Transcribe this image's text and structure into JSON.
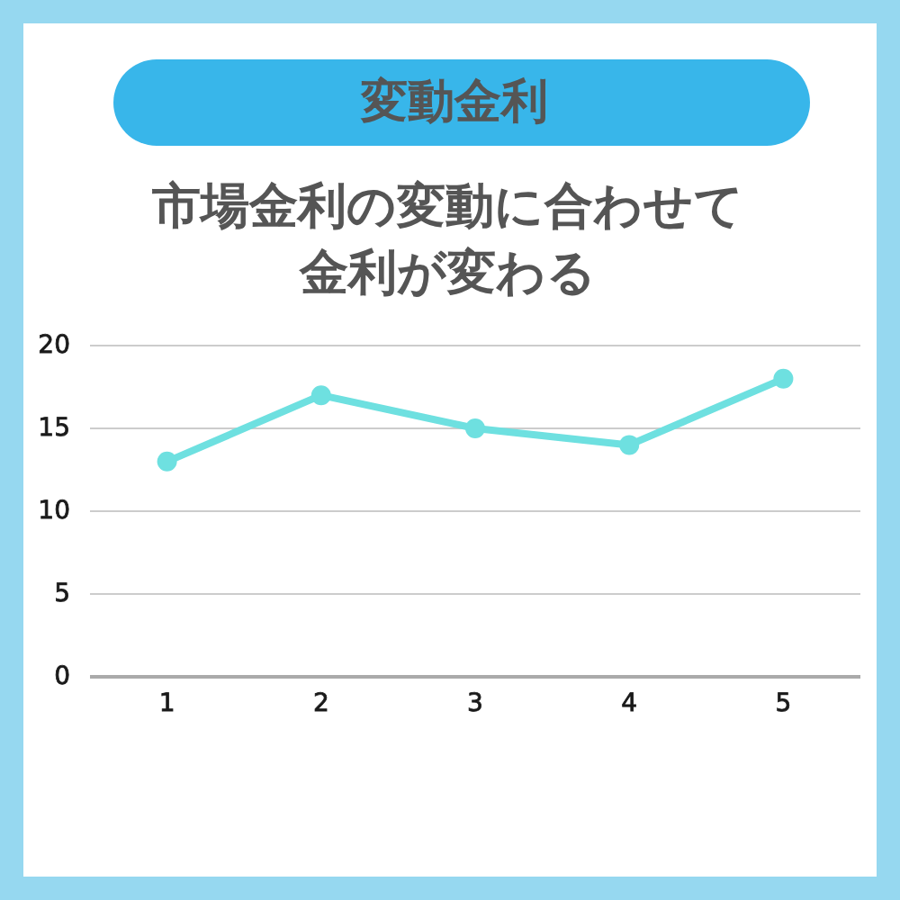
{
  "chart_data": {
    "type": "line",
    "title": "変動金利",
    "subtitle": "市場金利の変動に合わせて金利が変わる",
    "categories": [
      "1",
      "2",
      "3",
      "4",
      "5"
    ],
    "series": [
      {
        "color": "#6ee0e0",
        "values": [
          13,
          17,
          15,
          14,
          18
        ]
      }
    ],
    "ylim": [
      0,
      20
    ],
    "yticks": [
      0,
      5,
      10,
      15,
      20
    ],
    "grid": "y",
    "marker": "circle",
    "line_style": "solid"
  }
}
